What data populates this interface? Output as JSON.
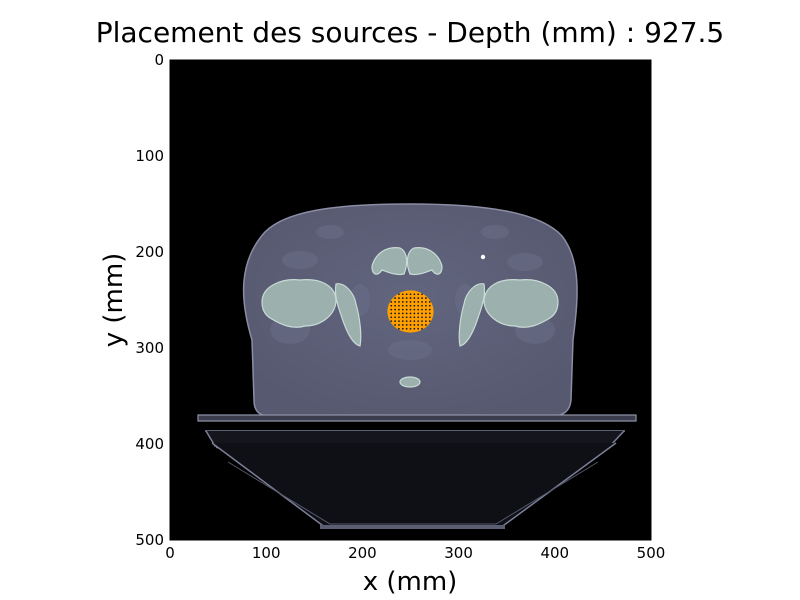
{
  "chart_data": {
    "type": "heatmap",
    "title": "Placement des sources - Depth (mm) : 927.5",
    "xlabel": "x (mm)",
    "ylabel": "y (mm)",
    "xlim": [
      0,
      500
    ],
    "ylim": [
      500,
      0
    ],
    "xticks": [
      "0",
      "100",
      "200",
      "300",
      "400",
      "500"
    ],
    "yticks": [
      "0",
      "100",
      "200",
      "300",
      "400",
      "500"
    ],
    "grid": false,
    "background_color": "#000000",
    "tissue_color": "#5d6079",
    "bone_color": "#b8ccc6",
    "target_color": "#ffa000",
    "source_dot_color": "#1a1a1a",
    "target_region": {
      "shape": "disc",
      "center_mm": [
        250,
        262
      ],
      "radius_mm": [
        24,
        22
      ]
    },
    "source_points": {
      "x_range_mm": [
        226,
        274
      ],
      "y_range_mm": [
        240,
        284
      ],
      "spacing_mm": 4
    }
  }
}
